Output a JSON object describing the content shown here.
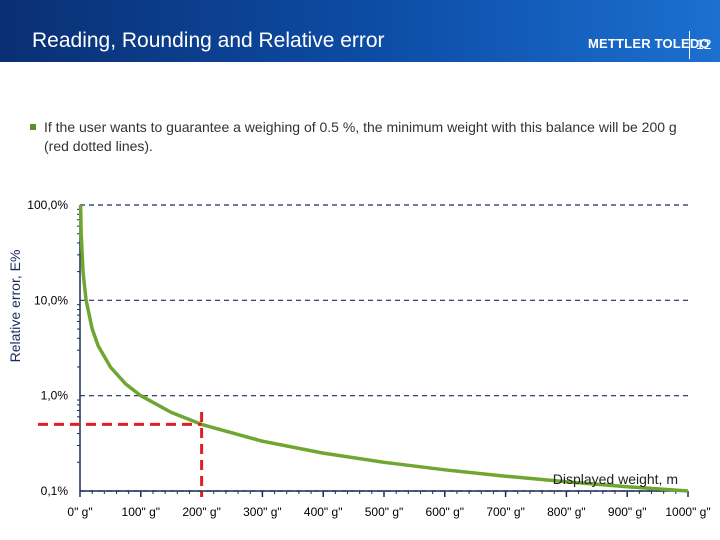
{
  "header": {
    "title": "Reading, Rounding and Relative error",
    "brand": "METTLER TOLEDO",
    "slide_number": "12"
  },
  "bullet": {
    "text": "If the user wants to guarantee a weighing of 0.5 %, the minimum weight with this balance will be 200 g (red dotted lines)."
  },
  "chart_data": {
    "type": "line",
    "title": "",
    "xlabel": "Displayed weight, m",
    "ylabel": "Relative error, E%",
    "yscale": "log",
    "ylim": [
      0.1,
      100
    ],
    "xlim": [
      0,
      1000
    ],
    "y_ticks": [
      {
        "value": 100,
        "label": "100,0%"
      },
      {
        "value": 10,
        "label": "10,0%"
      },
      {
        "value": 1,
        "label": "1,0%"
      },
      {
        "value": 0.1,
        "label": "0,1%"
      }
    ],
    "x_ticks": [
      {
        "value": 0,
        "label": "0\" g\""
      },
      {
        "value": 100,
        "label": "100\" g\""
      },
      {
        "value": 200,
        "label": "200\" g\""
      },
      {
        "value": 300,
        "label": "300\" g\""
      },
      {
        "value": 400,
        "label": "400\" g\""
      },
      {
        "value": 500,
        "label": "500\" g\""
      },
      {
        "value": 600,
        "label": "600\" g\""
      },
      {
        "value": 700,
        "label": "700\" g\""
      },
      {
        "value": 800,
        "label": "800\" g\""
      },
      {
        "value": 900,
        "label": "900\" g\""
      },
      {
        "value": 1000,
        "label": "1000\" g\""
      }
    ],
    "series": [
      {
        "color": "#6fa632",
        "x": [
          1,
          2,
          5,
          10,
          20,
          30,
          50,
          75,
          100,
          150,
          200,
          300,
          400,
          500,
          600,
          700,
          800,
          900,
          1000
        ],
        "y": [
          100,
          50,
          20,
          10,
          5,
          3.33,
          2,
          1.33,
          1,
          0.667,
          0.5,
          0.333,
          0.25,
          0.2,
          0.167,
          0.143,
          0.125,
          0.111,
          0.1
        ]
      }
    ],
    "reference_lines": {
      "color": "#e02020",
      "style": "dashed",
      "x_value": 200,
      "y_value": 0.5
    },
    "grid": {
      "horizontal": true,
      "style": "dashed",
      "color": "#1a2d5a"
    }
  }
}
